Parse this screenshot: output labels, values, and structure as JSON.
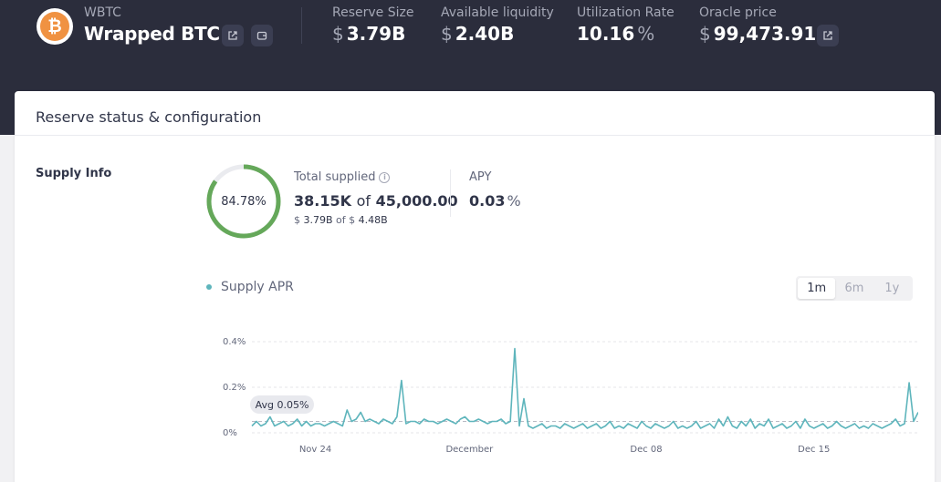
{
  "header": {
    "symbol": "WBTC",
    "name": "Wrapped BTC",
    "icon": "bitcoin-icon",
    "stats": [
      {
        "label": "Reserve Size",
        "prefix": "$",
        "value": "3.79B",
        "suffix": ""
      },
      {
        "label": "Available liquidity",
        "prefix": "$",
        "value": "2.40B",
        "suffix": ""
      },
      {
        "label": "Utilization Rate",
        "prefix": "",
        "value": "10.16",
        "suffix": "%"
      },
      {
        "label": "Oracle price",
        "prefix": "$",
        "value": "99,473.91",
        "suffix": ""
      }
    ]
  },
  "card": {
    "title": "Reserve status & configuration",
    "section_label": "Supply Info",
    "supply": {
      "utilization_ring": "84.78%",
      "utilization_fraction": 0.8478,
      "total_supplied_label": "Total supplied",
      "supplied": "38.15K",
      "of_word": "of",
      "cap": "45,000.00",
      "usd_prefix": "$",
      "usd_supplied": "3.79B",
      "usd_cap": "4.48B"
    },
    "apy": {
      "label": "APY",
      "value": "0.03",
      "suffix": "%"
    },
    "legend_label": "Supply APR",
    "ranges": [
      {
        "label": "1m",
        "active": true
      },
      {
        "label": "6m",
        "active": false
      },
      {
        "label": "1y",
        "active": false
      }
    ],
    "avg_label": "Avg 0.05%"
  },
  "colors": {
    "header_bg": "#2b2d3c",
    "ring": "#65a85a",
    "series": "#5eb5bc"
  },
  "chart_data": {
    "type": "line",
    "series": [
      {
        "name": "Supply APR",
        "values": [
          0.03,
          0.05,
          0.03,
          0.04,
          0.07,
          0.03,
          0.04,
          0.05,
          0.03,
          0.04,
          0.06,
          0.03,
          0.05,
          0.03,
          0.04,
          0.04,
          0.03,
          0.04,
          0.05,
          0.04,
          0.03,
          0.1,
          0.05,
          0.06,
          0.09,
          0.05,
          0.06,
          0.05,
          0.04,
          0.06,
          0.05,
          0.04,
          0.07,
          0.23,
          0.04,
          0.05,
          0.05,
          0.04,
          0.06,
          0.05,
          0.05,
          0.04,
          0.05,
          0.06,
          0.05,
          0.04,
          0.06,
          0.07,
          0.05,
          0.05,
          0.06,
          0.05,
          0.04,
          0.05,
          0.05,
          0.06,
          0.04,
          0.05,
          0.37,
          0.03,
          0.15,
          0.03,
          0.02,
          0.03,
          0.04,
          0.02,
          0.03,
          0.03,
          0.02,
          0.04,
          0.03,
          0.02,
          0.03,
          0.04,
          0.02,
          0.03,
          0.04,
          0.02,
          0.03,
          0.05,
          0.02,
          0.03,
          0.02,
          0.04,
          0.03,
          0.02,
          0.05,
          0.03,
          0.02,
          0.04,
          0.03,
          0.02,
          0.03,
          0.05,
          0.02,
          0.03,
          0.02,
          0.03,
          0.05,
          0.02,
          0.03,
          0.04,
          0.02,
          0.06,
          0.03,
          0.07,
          0.03,
          0.02,
          0.05,
          0.03,
          0.06,
          0.02,
          0.04,
          0.03,
          0.06,
          0.02,
          0.03,
          0.04,
          0.02,
          0.03,
          0.05,
          0.02,
          0.06,
          0.03,
          0.02,
          0.03,
          0.04,
          0.02,
          0.03,
          0.05,
          0.03,
          0.02,
          0.03,
          0.04,
          0.02,
          0.03,
          0.02,
          0.04,
          0.03,
          0.02,
          0.03,
          0.04,
          0.06,
          0.03,
          0.04,
          0.22,
          0.05,
          0.09
        ]
      }
    ],
    "x_tick_labels": [
      "Nov 24",
      "December",
      "Dec 08",
      "Dec 15"
    ],
    "x_tick_index": [
      14,
      48,
      87,
      124
    ],
    "y_ticks": [
      0,
      0.2,
      0.4
    ],
    "y_tick_labels": [
      "0%",
      "0.2%",
      "0.4%"
    ],
    "ylim": [
      0,
      0.4
    ],
    "average": 0.05,
    "grid": true,
    "legend": "top-left"
  }
}
